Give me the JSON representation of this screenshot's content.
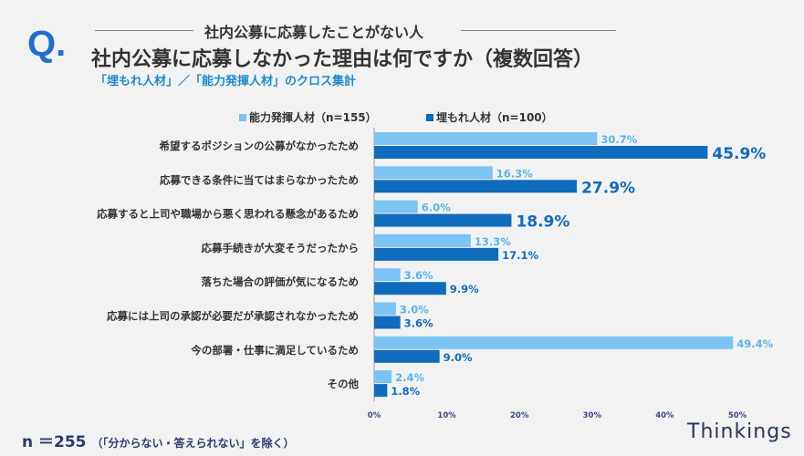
{
  "header": {
    "q_mark": "Q.",
    "target": "社内公募に応募したことがない人",
    "title": "社内公募に応募しなかった理由は何ですか（複数回答）",
    "subtitle": "「埋もれ人材」／「能力発揮人材」のクロス集計"
  },
  "footer": {
    "n": "n ＝255",
    "note": "（「分からない・答えられない」を除く）",
    "brand": "Thinkings"
  },
  "chart_data": {
    "type": "bar",
    "orientation": "horizontal",
    "categories": [
      "希望するポジションの公募がなかったため",
      "応募できる条件に当てはまらなかったため",
      "応募すると上司や職場から悪く思われる懸念があるため",
      "応募手続きが大変そうだったから",
      "落ちた場合の評価が気になるため",
      "応募には上司の承認が必要だが承認されなかったため",
      "今の部署・仕事に満足しているため",
      "その他"
    ],
    "series": [
      {
        "name": "能力発揮人材（n=155）",
        "color": "#7cc4f4",
        "values": [
          30.7,
          16.3,
          6.0,
          13.3,
          3.6,
          3.0,
          49.4,
          2.4
        ]
      },
      {
        "name": "埋もれ人材（n=100）",
        "color": "#0f6bbd",
        "values": [
          45.9,
          27.9,
          18.9,
          17.1,
          9.9,
          3.6,
          9.0,
          1.8
        ]
      }
    ],
    "xlim": [
      0,
      50
    ],
    "xticks": [
      "0%",
      "10%",
      "20%",
      "30%",
      "40%",
      "50%"
    ],
    "legend": "top-center"
  }
}
